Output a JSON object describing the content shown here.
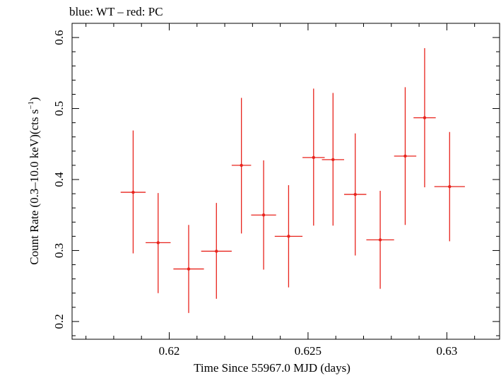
{
  "header": {
    "label": "blue: WT – red: PC"
  },
  "chart_data": {
    "type": "scatter",
    "title": "",
    "xlabel": "Time Since 55967.0 MJD (days)",
    "ylabel_main": "Count Rate (0.3–10.0 keV)(cts s",
    "ylabel_sup": "−1",
    "ylabel_close": ")",
    "xlim": [
      0.6165,
      0.6319
    ],
    "ylim": [
      0.175,
      0.62
    ],
    "xticks": [
      0.62,
      0.625,
      0.63
    ],
    "xtick_labels": [
      "0.62",
      "0.625",
      "0.63"
    ],
    "yticks": [
      0.2,
      0.3,
      0.4,
      0.5,
      0.6
    ],
    "ytick_labels": [
      "0.2",
      "0.3",
      "0.4",
      "0.5",
      "0.6"
    ],
    "x_minor_step": 0.001,
    "y_minor_step": 0.02,
    "series": [
      {
        "color": "#e8231c",
        "points": [
          {
            "x": 0.6187,
            "xerr": 0.00045,
            "y": 0.382,
            "ylo": 0.296,
            "yhi": 0.469
          },
          {
            "x": 0.6196,
            "xerr": 0.00045,
            "y": 0.311,
            "ylo": 0.24,
            "yhi": 0.381
          },
          {
            "x": 0.6207,
            "xerr": 0.00055,
            "y": 0.274,
            "ylo": 0.212,
            "yhi": 0.336
          },
          {
            "x": 0.6217,
            "xerr": 0.00055,
            "y": 0.299,
            "ylo": 0.232,
            "yhi": 0.367
          },
          {
            "x": 0.6226,
            "xerr": 0.00035,
            "y": 0.42,
            "ylo": 0.324,
            "yhi": 0.515
          },
          {
            "x": 0.6234,
            "xerr": 0.00045,
            "y": 0.35,
            "ylo": 0.273,
            "yhi": 0.427
          },
          {
            "x": 0.6243,
            "xerr": 0.0005,
            "y": 0.32,
            "ylo": 0.248,
            "yhi": 0.392
          },
          {
            "x": 0.6252,
            "xerr": 0.0004,
            "y": 0.431,
            "ylo": 0.335,
            "yhi": 0.528
          },
          {
            "x": 0.6259,
            "xerr": 0.0004,
            "y": 0.428,
            "ylo": 0.335,
            "yhi": 0.522
          },
          {
            "x": 0.6267,
            "xerr": 0.0004,
            "y": 0.379,
            "ylo": 0.293,
            "yhi": 0.465
          },
          {
            "x": 0.6276,
            "xerr": 0.0005,
            "y": 0.315,
            "ylo": 0.246,
            "yhi": 0.384
          },
          {
            "x": 0.6285,
            "xerr": 0.0004,
            "y": 0.433,
            "ylo": 0.336,
            "yhi": 0.53
          },
          {
            "x": 0.6292,
            "xerr": 0.0004,
            "y": 0.487,
            "ylo": 0.389,
            "yhi": 0.585
          },
          {
            "x": 0.6301,
            "xerr": 0.00055,
            "y": 0.39,
            "ylo": 0.313,
            "yhi": 0.467
          }
        ]
      }
    ]
  }
}
